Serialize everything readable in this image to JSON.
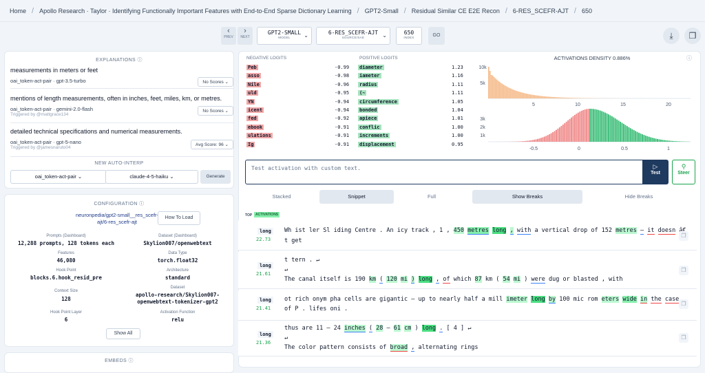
{
  "breadcrumb": [
    "Home",
    "Apollo Research · Taylor · Identifying Functionally Important Features with End-to-End Sparse Dictionary Learning",
    "GPT2-Small",
    "Residual Similar CE E2E Recon",
    "6-RES_SCEFR-AJT",
    "650"
  ],
  "nav": {
    "prev_label": "PREV",
    "next_label": "NEXT",
    "prev_icon": "‹",
    "next_icon": "›"
  },
  "model": {
    "value": "GPT2-SMALL",
    "label": "MODEL"
  },
  "source": {
    "value": "6-RES_SCEFR-AJT",
    "label": "SOURCE/SAE"
  },
  "index": {
    "value": "650",
    "label": "INDEX"
  },
  "go_label": "GO",
  "explanations": {
    "title": "EXPLANATIONS",
    "items": [
      {
        "text": "measurements in meters or feet",
        "model": "oai_token-act-pair · gpt-3.5-turbo",
        "triggered": "",
        "score": "No Scores"
      },
      {
        "text": "mentions of length measurements, often in inches, feet, miles, km, or metres.",
        "model": "oai_token-act-pair · gemini-2.0-flash",
        "triggered": "Triggered by @mattgrace134",
        "score": "No Scores"
      },
      {
        "text": "detailed technical specifications and numerical measurements.",
        "model": "oai_token-act-pair · gpt-5-nano",
        "triggered": "Triggered by @jamesnaruto04",
        "score": "Avg Score: 96"
      }
    ],
    "new_title": "NEW AUTO-INTERP",
    "explainer": "oai_token-act-pair",
    "explainer_model": "claude-4-5-haiku",
    "generate_label": "Generate"
  },
  "config": {
    "title": "CONFIGURATION",
    "link": "neuronpedia/gpt2-small__res_scefr-ajt/6-res_scefr-ajt",
    "how_to_load": "How To Load",
    "fields": [
      {
        "label": "Prompts (Dashboard)",
        "value": "12,288 prompts, 128 tokens each"
      },
      {
        "label": "Dataset (Dashboard)",
        "value": "Skylion007/openwebtext"
      },
      {
        "label": "Features",
        "value": "46,080"
      },
      {
        "label": "Data Type",
        "value": "torch.float32"
      },
      {
        "label": "Hook Point",
        "value": "blocks.6.hook_resid_pre"
      },
      {
        "label": "Architecture",
        "value": "standard"
      },
      {
        "label": "Context Size",
        "value": "128"
      },
      {
        "label": "Dataset",
        "value": "apollo-research/Skylion007-openwebtext-tokenizer-gpt2"
      },
      {
        "label": "Hook Point Layer",
        "value": "6"
      },
      {
        "label": "Activation Function",
        "value": "relu"
      }
    ],
    "show_all": "Show All",
    "embeds_title": "EMBEDS"
  },
  "logits": {
    "neg_title": "NEGATIVE LOGITS",
    "pos_title": "POSITIVE LOGITS",
    "neg": [
      {
        "tok": "Peb",
        "val": "-0.99"
      },
      {
        "tok": "asso",
        "val": "-0.98"
      },
      {
        "tok": " Nile",
        "val": "-0.96"
      },
      {
        "tok": "uld",
        "val": "-0.95"
      },
      {
        "tok": "YN",
        "val": "-0.94"
      },
      {
        "tok": "icent",
        "val": "-0.94"
      },
      {
        "tok": "fed",
        "val": "-0.92"
      },
      {
        "tok": "ebook",
        "val": "-0.91"
      },
      {
        "tok": "ulations",
        "val": "-0.91"
      },
      {
        "tok": "Ig",
        "val": "-0.91"
      }
    ],
    "pos": [
      {
        "tok": " diameter",
        "val": "1.23"
      },
      {
        "tok": "iameter",
        "val": "1.16"
      },
      {
        "tok": " radius",
        "val": "1.11"
      },
      {
        "tok": " (~",
        "val": "1.11"
      },
      {
        "tok": " circumference",
        "val": "1.05"
      },
      {
        "tok": " bonded",
        "val": "1.04"
      },
      {
        "tok": " apiece",
        "val": "1.01"
      },
      {
        "tok": " conflic",
        "val": "1.00"
      },
      {
        "tok": " increments",
        "val": "1.00"
      },
      {
        "tok": " displacement",
        "val": "0.95"
      }
    ]
  },
  "density": {
    "title": "ACTIVATIONS DENSITY 0.886%",
    "top_yticks": [
      "10k",
      "5k"
    ],
    "top_xticks": [
      "5",
      "10",
      "15",
      "20"
    ],
    "bottom_yticks": [
      "3k",
      "2k",
      "1k"
    ],
    "bottom_xticks": [
      "-0.5",
      "0",
      "0.5",
      "1"
    ]
  },
  "test": {
    "placeholder": "Test activation with custom text.",
    "test_label": "Test",
    "steer_label": "Steer"
  },
  "tabs": [
    "Stacked",
    "Snippet",
    "Full",
    "Show Breaks",
    "Hide Breaks"
  ],
  "top_label": "TOP",
  "activations_label": "ACTIVATIONS",
  "activations": [
    {
      "token": "long",
      "value": "22.73",
      "line1": "Wh ist ler Sl iding Centre . An icy track , 1 , 450 metres long , with a vertical drop of 152 metres – it doesn â€",
      "line2": "t get"
    },
    {
      "token": "long",
      "value": "21.61",
      "line1": "t tern . ↵",
      "line2": "↵",
      "line3": "The canal itself is 190 km ( 120 mi ) long , of which 87 km ( 54 mi ) were dug or blasted , with"
    },
    {
      "token": "long",
      "value": "21.41",
      "line1": "ot rich onym pha cells are gigantic – up to nearly half a mill imeter long by 100 mic rom eters wide in the case",
      "line2": "of P . lifes oni ."
    },
    {
      "token": "long",
      "value": "21.36",
      "line1": "thus are 11 – 24 inches ( 28 – 61 cm ) long . [ 4 ] ↵",
      "line2": "↵",
      "line3": "The color pattern consists of broad , alternating rings"
    }
  ],
  "colors": {
    "negative": "#f1a7a7",
    "positive": "#a7e3bf",
    "accent": "#1e3a5f"
  }
}
